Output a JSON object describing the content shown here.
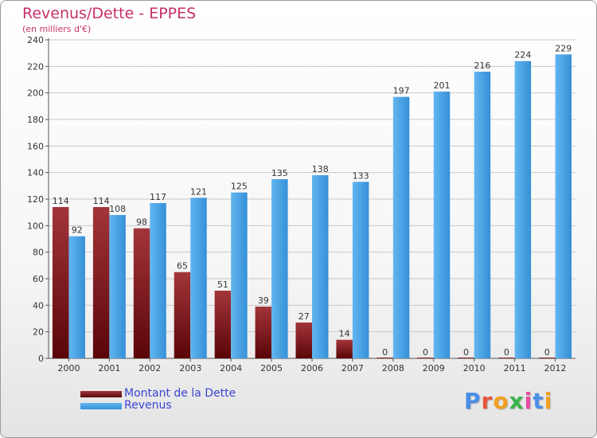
{
  "chart_data": {
    "type": "bar",
    "title": "Revenus/Dette - EPPES",
    "subtitle": "(en milliers d'€)",
    "categories": [
      "2000",
      "2001",
      "2002",
      "2003",
      "2004",
      "2005",
      "2006",
      "2007",
      "2008",
      "2009",
      "2010",
      "2011",
      "2012"
    ],
    "series": [
      {
        "name": "Montant de la Dette",
        "color": "#7a0f12",
        "values": [
          114,
          114,
          98,
          65,
          51,
          39,
          27,
          14,
          0,
          0,
          0,
          0,
          0
        ]
      },
      {
        "name": "Revenus",
        "color": "#4aa3e6",
        "values": [
          92,
          108,
          117,
          121,
          125,
          135,
          138,
          133,
          197,
          201,
          216,
          224,
          229
        ]
      }
    ],
    "ylim": [
      0,
      240
    ],
    "yticks": [
      0,
      20,
      40,
      60,
      80,
      100,
      120,
      140,
      160,
      180,
      200,
      220,
      240
    ],
    "grid": true,
    "legend_position": "bottom-left"
  },
  "logo": {
    "text": "Proxiti",
    "letter_colors": [
      "#4a8ee8",
      "#e6553a",
      "#f0a020",
      "#3ab34a",
      "#e84aa0",
      "#4a8ee8",
      "#f0a020"
    ]
  }
}
